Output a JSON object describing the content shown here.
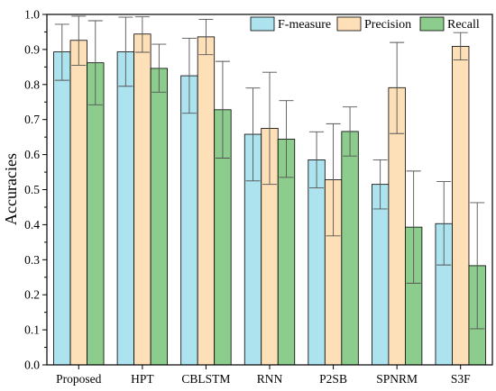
{
  "chart_data": {
    "type": "bar",
    "title": "",
    "xlabel": "",
    "ylabel": "Accuracies",
    "ylim": [
      0,
      1.0
    ],
    "yticks": [
      "0.0",
      "0.1",
      "0.2",
      "0.3",
      "0.4",
      "0.5",
      "0.6",
      "0.7",
      "0.8",
      "0.9",
      "1.0"
    ],
    "grid": false,
    "legend_position": "top-right",
    "categories": [
      "Proposed",
      "HPT",
      "CBLSTM",
      "RNN",
      "P2SB",
      "SPNRM",
      "S3F"
    ],
    "series": [
      {
        "name": "F-measure",
        "color": "#ade3ef",
        "values": [
          0.893,
          0.893,
          0.825,
          0.658,
          0.585,
          0.515,
          0.403
        ],
        "err_low": [
          0.812,
          0.795,
          0.718,
          0.525,
          0.505,
          0.445,
          0.285
        ],
        "err_high": [
          0.972,
          0.992,
          0.932,
          0.79,
          0.665,
          0.585,
          0.523
        ]
      },
      {
        "name": "Precision",
        "color": "#fee0b8",
        "values": [
          0.926,
          0.944,
          0.936,
          0.675,
          0.528,
          0.791,
          0.909
        ],
        "err_low": [
          0.855,
          0.892,
          0.885,
          0.515,
          0.368,
          0.66,
          0.87
        ],
        "err_high": [
          0.995,
          0.993,
          0.986,
          0.835,
          0.688,
          0.92,
          0.948
        ]
      },
      {
        "name": "Recall",
        "color": "#8ccc8c",
        "values": [
          0.862,
          0.846,
          0.728,
          0.644,
          0.666,
          0.393,
          0.283
        ],
        "err_low": [
          0.742,
          0.778,
          0.59,
          0.535,
          0.596,
          0.233,
          0.103
        ],
        "err_high": [
          0.982,
          0.915,
          0.866,
          0.754,
          0.736,
          0.553,
          0.463
        ]
      }
    ]
  }
}
